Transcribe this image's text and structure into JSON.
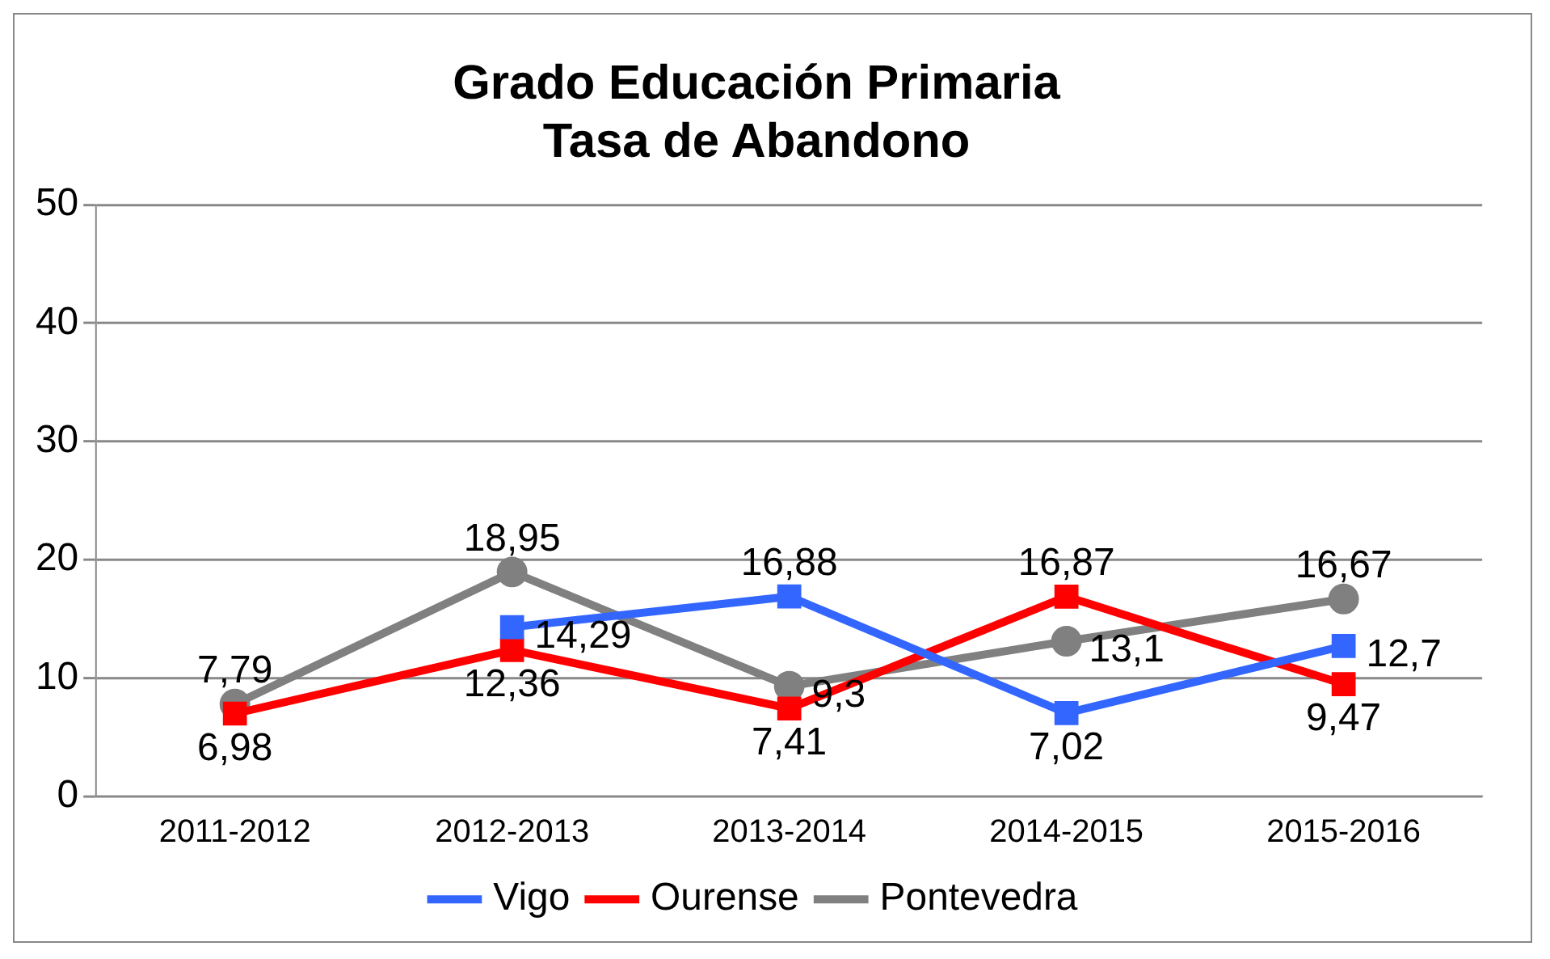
{
  "chart_data": {
    "type": "line",
    "title": "Grado Educación Primaria\nTasa de Abandono",
    "categories": [
      "2011-2012",
      "2012-2013",
      "2013-2014",
      "2014-2015",
      "2015-2016"
    ],
    "series": [
      {
        "name": "Vigo",
        "color": "#3366ff",
        "marker": "square",
        "values": [
          null,
          14.29,
          16.88,
          7.02,
          12.7
        ],
        "value_labels": [
          null,
          "14,29",
          "16,88",
          "7,02",
          "12,7"
        ]
      },
      {
        "name": "Ourense",
        "color": "#ff0000",
        "marker": "square",
        "values": [
          6.98,
          12.36,
          7.41,
          16.87,
          9.47
        ],
        "value_labels": [
          "6,98",
          "12,36",
          "7,41",
          "16,87",
          "9,47"
        ]
      },
      {
        "name": "Pontevedra",
        "color": "#808080",
        "marker": "circle",
        "values": [
          7.79,
          18.95,
          9.3,
          13.1,
          16.67
        ],
        "value_labels": [
          "7,79",
          "18,95",
          "9,3",
          "13,1",
          "16,67"
        ]
      }
    ],
    "ylim": [
      0,
      50
    ],
    "yticks": [
      0,
      10,
      20,
      30,
      40,
      50
    ],
    "grid": "y",
    "legend": "bottom"
  }
}
